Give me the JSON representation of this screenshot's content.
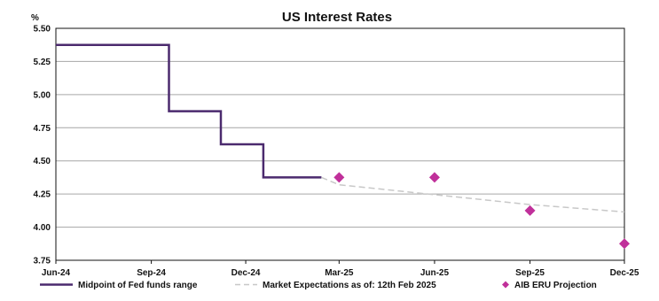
{
  "chart_data": {
    "type": "line",
    "title": "US Interest Rates",
    "ylabel": "%",
    "xlabel": "",
    "ylim": [
      3.75,
      5.5
    ],
    "yticks": [
      "5.50",
      "5.25",
      "5.00",
      "4.75",
      "4.50",
      "4.25",
      "4.00",
      "3.75"
    ],
    "x_range": [
      "2024-06-01",
      "2025-12-01"
    ],
    "xticks": [
      {
        "label": "Jun-24",
        "date": "2024-06-01"
      },
      {
        "label": "Sep-24",
        "date": "2024-09-01"
      },
      {
        "label": "Dec-24",
        "date": "2024-12-01"
      },
      {
        "label": "Mar-25",
        "date": "2025-03-01"
      },
      {
        "label": "Jun-25",
        "date": "2025-06-01"
      },
      {
        "label": "Sep-25",
        "date": "2025-09-01"
      },
      {
        "label": "Dec-25",
        "date": "2025-12-01"
      }
    ],
    "grid": true,
    "legend_position": "bottom",
    "series": [
      {
        "name": "Midpoint of Fed funds range",
        "style": "step-line",
        "color": "#4b2a6e",
        "points": [
          {
            "x": "2024-06-01",
            "y": 5.375
          },
          {
            "x": "2024-09-18",
            "y": 5.375
          },
          {
            "x": "2024-09-18",
            "y": 4.875
          },
          {
            "x": "2024-11-07",
            "y": 4.875
          },
          {
            "x": "2024-11-07",
            "y": 4.625
          },
          {
            "x": "2024-12-18",
            "y": 4.625
          },
          {
            "x": "2024-12-18",
            "y": 4.375
          },
          {
            "x": "2025-02-12",
            "y": 4.375
          }
        ]
      },
      {
        "name": "Market Expectations as of: 12th Feb 2025",
        "style": "dashed-line",
        "color": "#c8c8c8",
        "points": [
          {
            "x": "2025-02-12",
            "y": 4.375
          },
          {
            "x": "2025-03-01",
            "y": 4.32
          },
          {
            "x": "2025-06-01",
            "y": 4.245
          },
          {
            "x": "2025-09-01",
            "y": 4.17
          },
          {
            "x": "2025-12-01",
            "y": 4.115
          }
        ]
      },
      {
        "name": "AIB ERU Projection",
        "style": "marker",
        "color": "#c0309a",
        "points": [
          {
            "x": "2025-03-01",
            "y": 4.375
          },
          {
            "x": "2025-06-01",
            "y": 4.375
          },
          {
            "x": "2025-09-01",
            "y": 4.125
          },
          {
            "x": "2025-12-01",
            "y": 3.875
          }
        ]
      }
    ]
  }
}
